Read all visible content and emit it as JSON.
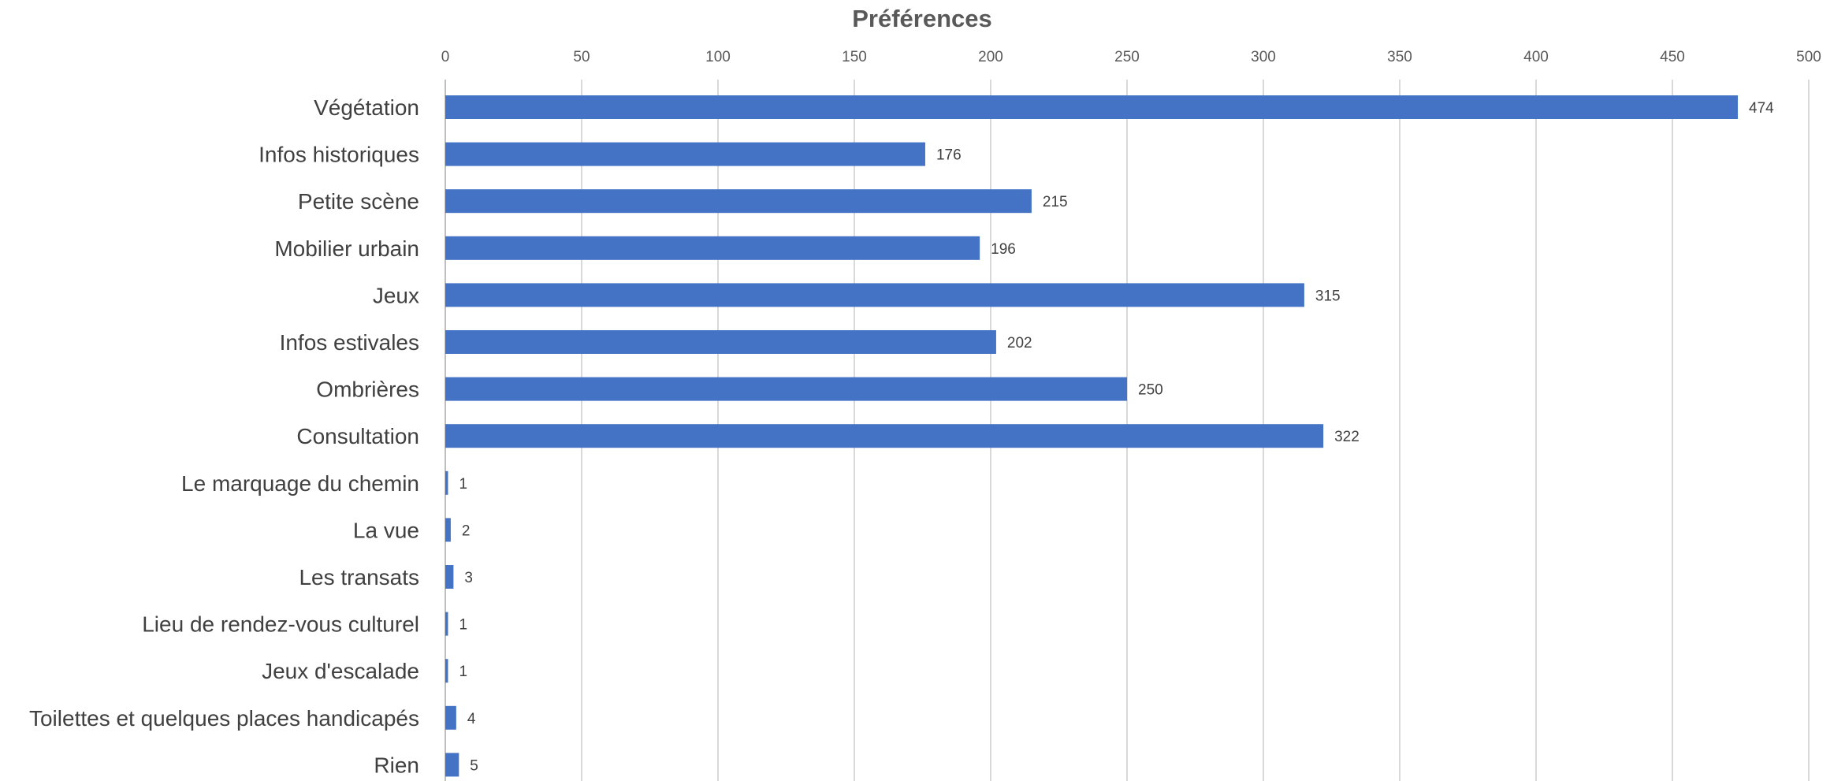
{
  "chart_data": {
    "type": "bar",
    "orientation": "horizontal",
    "title": "Préférences",
    "xlabel": "",
    "ylabel": "",
    "xlim": [
      0,
      500
    ],
    "ticks": [
      0,
      50,
      100,
      150,
      200,
      250,
      300,
      350,
      400,
      450,
      500
    ],
    "tick_position": "top",
    "grid": true,
    "legend": "none",
    "bar_color": "#4472C4",
    "categories": [
      "Végétation",
      "Infos historiques",
      "Petite scène",
      "Mobilier urbain",
      "Jeux",
      "Infos estivales",
      "Ombrières",
      "Consultation",
      "Le marquage du chemin",
      "La vue",
      "Les transats",
      "Lieu de rendez-vous culturel",
      "Jeux d'escalade",
      "Toilettes et quelques places handicapés",
      "Rien"
    ],
    "values": [
      474,
      176,
      215,
      196,
      315,
      202,
      250,
      322,
      1,
      2,
      3,
      1,
      1,
      4,
      5
    ]
  }
}
